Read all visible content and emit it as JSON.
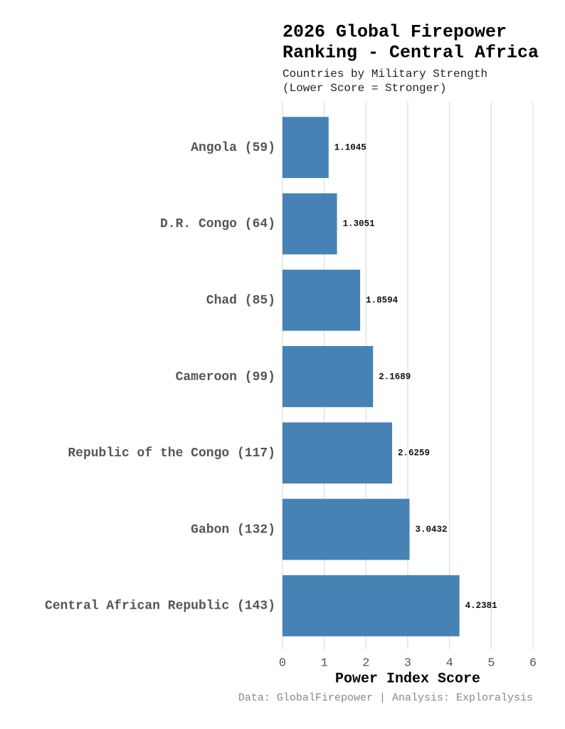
{
  "chart_data": {
    "type": "barh",
    "title": [
      "2026 Global Firepower",
      "Ranking - Central Africa"
    ],
    "subtitle": [
      "Countries by Military Strength",
      "(Lower Score = Stronger)"
    ],
    "x_label": "Power Index Score",
    "caption": "Data: GlobalFirepower | Analysis: Exploralysis",
    "categories": [
      "Angola (59)",
      "D.R. Congo (64)",
      "Chad (85)",
      "Cameroon (99)",
      "Republic of the Congo (117)",
      "Gabon (132)",
      "Central African Republic (143)"
    ],
    "values": [
      1.1045,
      1.3051,
      1.8594,
      2.1689,
      2.6259,
      3.0432,
      4.2381
    ],
    "color": "#4682b4",
    "xlim": [
      0,
      6
    ],
    "xticks": [
      0,
      1,
      2,
      3,
      4,
      5,
      6
    ],
    "grid": true
  }
}
